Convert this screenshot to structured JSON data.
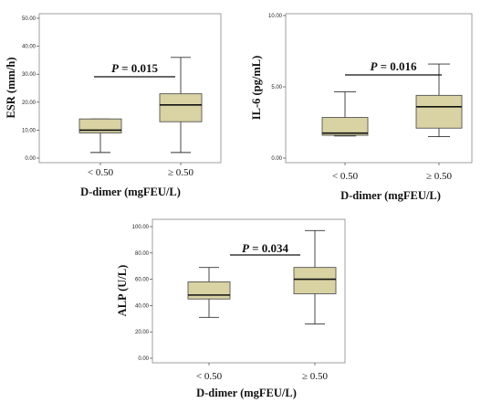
{
  "colors": {
    "box_fill": "#d9d2a2",
    "box_stroke": "#555555",
    "frame": "#888888"
  },
  "chart_data": [
    {
      "type": "box",
      "xlabel": "D-dimer (mgFEU/L)",
      "ylabel": "ESR (mm/h)",
      "categories": [
        "< 0.50",
        "≥ 0.50"
      ],
      "ylim": [
        0,
        50
      ],
      "yticks": [
        0,
        10,
        20,
        30,
        40,
        50
      ],
      "ytick_labels": [
        "0.00",
        "10.00",
        "20.00",
        "30.00",
        "40.00",
        "50.00"
      ],
      "boxes": [
        {
          "min": 2,
          "q1": 9,
          "median": 10,
          "q3": 14,
          "max": 14
        },
        {
          "min": 2,
          "q1": 13,
          "median": 19,
          "q3": 23,
          "max": 36
        }
      ],
      "p_label": "P",
      "p_value": "= 0.015"
    },
    {
      "type": "box",
      "xlabel": "D-dimer (mgFEU/L)",
      "ylabel": "IL-6 (pg/mL)",
      "categories": [
        "< 0.50",
        "≥ 0.50"
      ],
      "ylim": [
        0,
        10
      ],
      "yticks": [
        0,
        5,
        10
      ],
      "ytick_labels": [
        "0.00",
        "5.00",
        "10.00"
      ],
      "boxes": [
        {
          "min": 1.55,
          "q1": 1.6,
          "median": 1.75,
          "q3": 2.85,
          "max": 4.65
        },
        {
          "min": 1.5,
          "q1": 2.1,
          "median": 3.6,
          "q3": 4.4,
          "max": 6.6
        }
      ],
      "p_label": "P",
      "p_value": "= 0.016"
    },
    {
      "type": "box",
      "xlabel": "D-dimer (mgFEU/L)",
      "ylabel": "ALP (U/L)",
      "categories": [
        "< 0.50",
        "≥ 0.50"
      ],
      "ylim": [
        0,
        100
      ],
      "yticks": [
        0,
        20,
        40,
        60,
        80,
        100
      ],
      "ytick_labels": [
        "0.00",
        "20.00",
        "40.00",
        "60.00",
        "80.00",
        "100.00"
      ],
      "boxes": [
        {
          "min": 31,
          "q1": 45,
          "median": 48,
          "q3": 58,
          "max": 69
        },
        {
          "min": 26,
          "q1": 49,
          "median": 60,
          "q3": 69,
          "max": 97
        }
      ],
      "p_label": "P",
      "p_value": "= 0.034"
    }
  ]
}
